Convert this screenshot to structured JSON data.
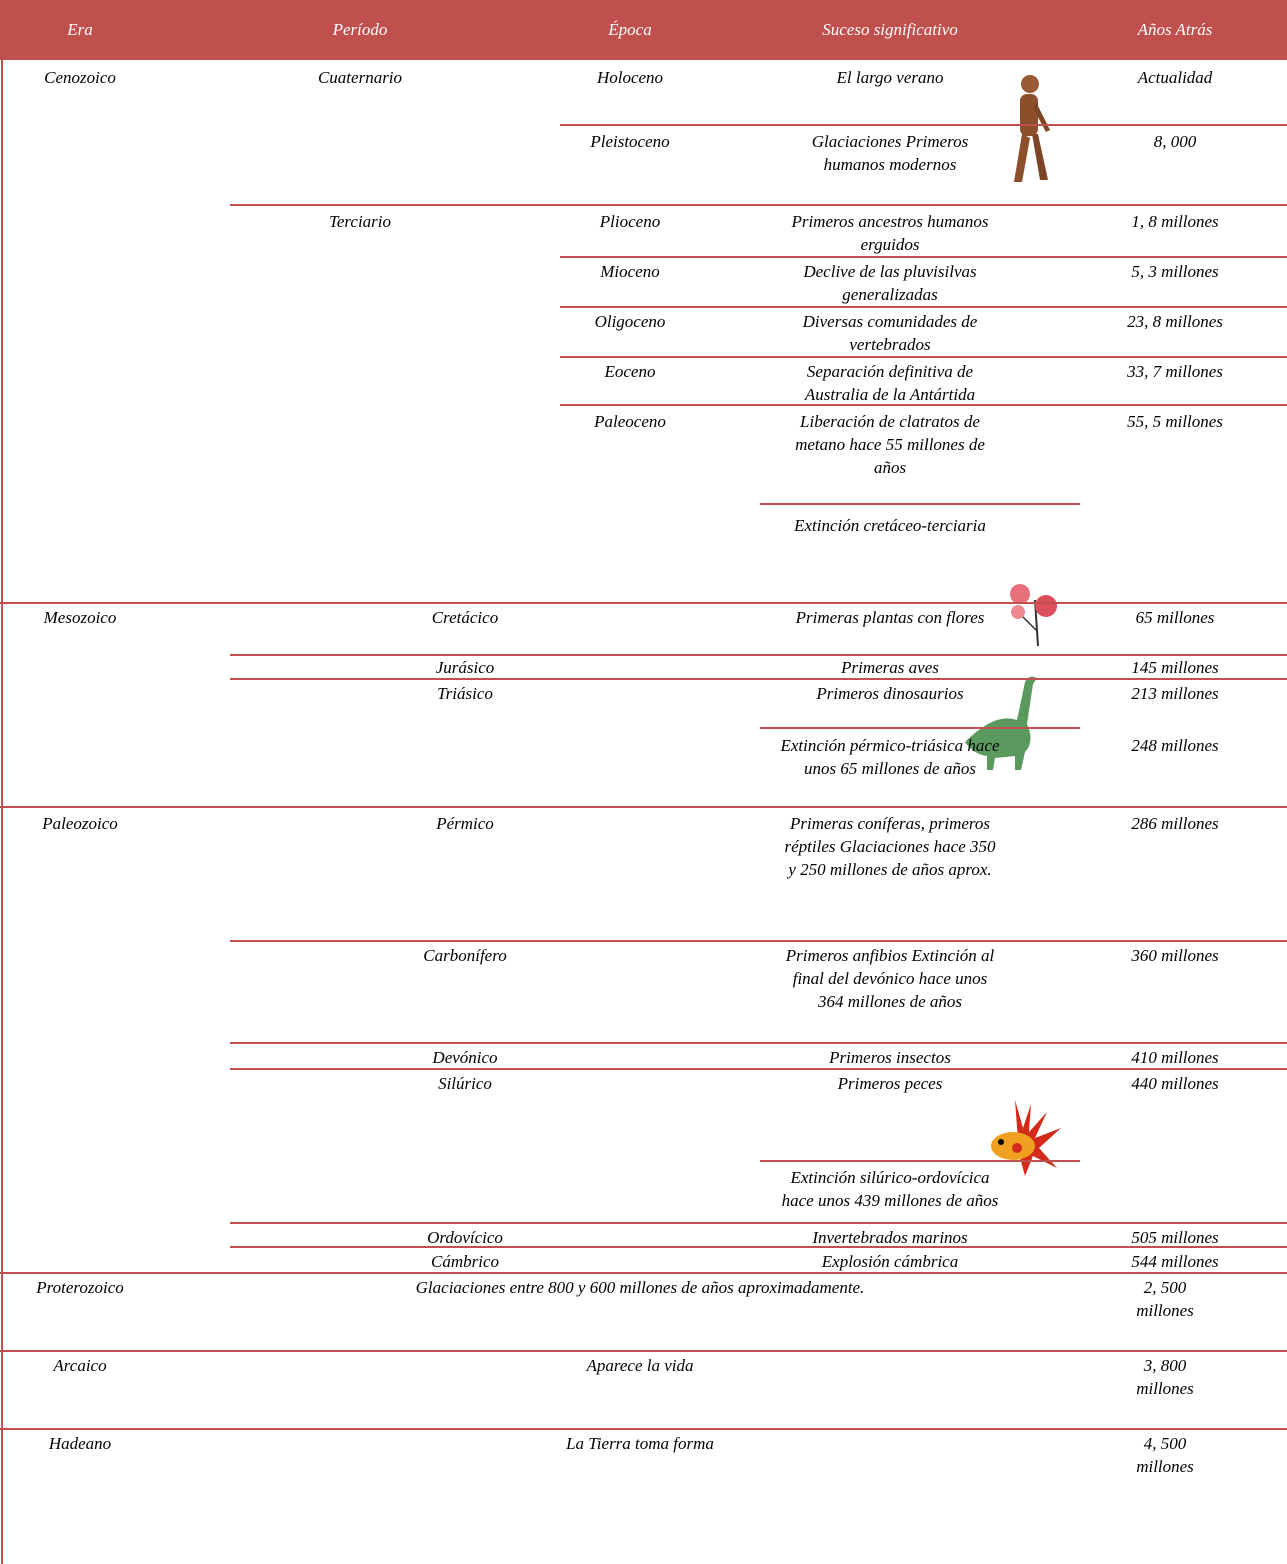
{
  "header": [
    "Era",
    "Período",
    "Época",
    "Suceso significativo",
    "Años Atrás"
  ],
  "eras": [
    {
      "name": "Cenozoico",
      "periods": [
        {
          "name": "Cuaternario",
          "epochs": [
            {
              "name": "Holoceno",
              "event": "El largo verano",
              "years": "Actualidad"
            },
            {
              "name": "Pleistoceno",
              "event": "Glaciaciones Primeros humanos modernos",
              "years": "8, 000"
            }
          ]
        },
        {
          "name": "Terciario",
          "epochs": [
            {
              "name": "Plioceno",
              "event": "Primeros ancestros humanos erguidos",
              "years": "1, 8 millones"
            },
            {
              "name": "Mioceno",
              "event": "Declive de las pluvisilvas generalizadas",
              "years": "5, 3 millones"
            },
            {
              "name": "Oligoceno",
              "event": "Diversas comunidades de vertebrados",
              "years": "23, 8 millones"
            },
            {
              "name": "Eoceno",
              "event": "Separación definitiva de Australia de la Antártida",
              "years": "33, 7 millones"
            },
            {
              "name": "Paleoceno",
              "event": "Liberación de clatratos de metano hace 55 millones de años",
              "years": "55, 5 millones"
            }
          ],
          "extinction": "Extinción cretáceo-terciaria"
        }
      ]
    },
    {
      "name": "Mesozoico",
      "periods": [
        {
          "name": "Cretácico",
          "event": "Primeras plantas con flores",
          "years": "65 millones"
        },
        {
          "name": "Jurásico",
          "event": "Primeras aves",
          "years": "145 millones"
        },
        {
          "name": "Triásico",
          "event": "Primeros dinosaurios",
          "years": "213 millones",
          "extinction": "Extinción pérmico-triásica hace unos 65 millones de años",
          "extinction_years": "248 millones"
        }
      ]
    },
    {
      "name": "Paleozoico",
      "periods": [
        {
          "name": "Pérmico",
          "event": "Primeras coníferas, primeros réptiles Glaciaciones hace 350 y 250 millones de años aprox.",
          "years": "286 millones"
        },
        {
          "name": "Carbonífero",
          "event": "Primeros anfibios Extinción al final del devónico hace unos 364 millones de años",
          "years": "360 millones"
        },
        {
          "name": "Devónico",
          "event": "Primeros insectos",
          "years": "410 millones"
        },
        {
          "name": "Silúrico",
          "event": "Primeros peces",
          "years": "440 millones",
          "extinction": "Extinción silúrico-ordovícica hace unos 439 millones de años"
        },
        {
          "name": "Ordovícico",
          "event": "Invertebrados marinos",
          "years": "505 millones"
        },
        {
          "name": "Cámbrico",
          "event": "Explosión cámbrica",
          "years": "544 millones"
        }
      ]
    },
    {
      "name": "Proterozoico",
      "event": "Glaciaciones entre 800 y 600 millones de años aproximadamente.",
      "years": "2, 500 millones"
    },
    {
      "name": "Arcaico",
      "event": "Aparece la vida",
      "years": "3, 800 millones"
    },
    {
      "name": "Hadeano",
      "event": "La Tierra toma forma",
      "years": "4, 500 millones"
    }
  ]
}
